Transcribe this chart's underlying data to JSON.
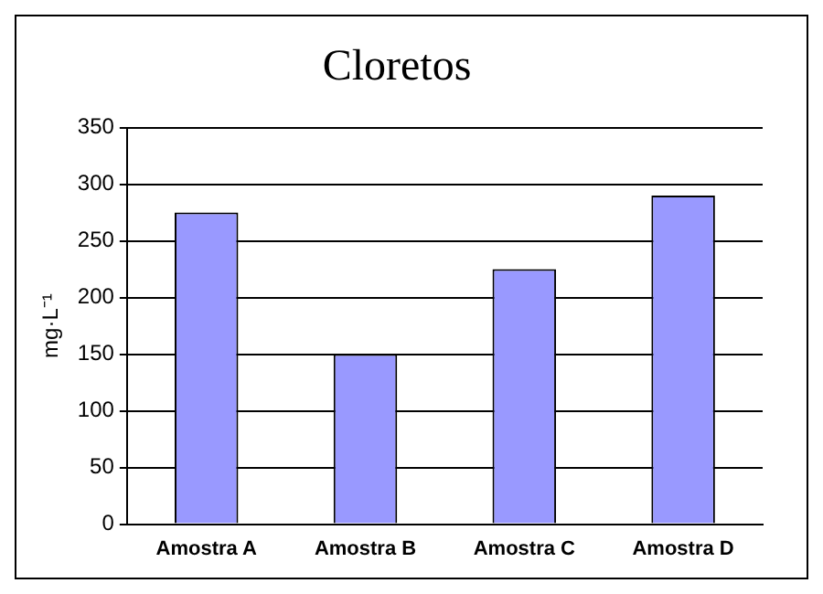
{
  "chart_data": {
    "type": "bar",
    "title": "Cloretos",
    "ylabel": "mg·L⁻¹",
    "categories": [
      "Amostra A",
      "Amostra B",
      "Amostra C",
      "Amostra D"
    ],
    "values": [
      275,
      150,
      225,
      290
    ],
    "color": "#9999ff",
    "ylim": [
      0,
      350
    ],
    "yticks": [
      0,
      50,
      100,
      150,
      200,
      250,
      300,
      350
    ],
    "grid": "y",
    "legend": false
  }
}
